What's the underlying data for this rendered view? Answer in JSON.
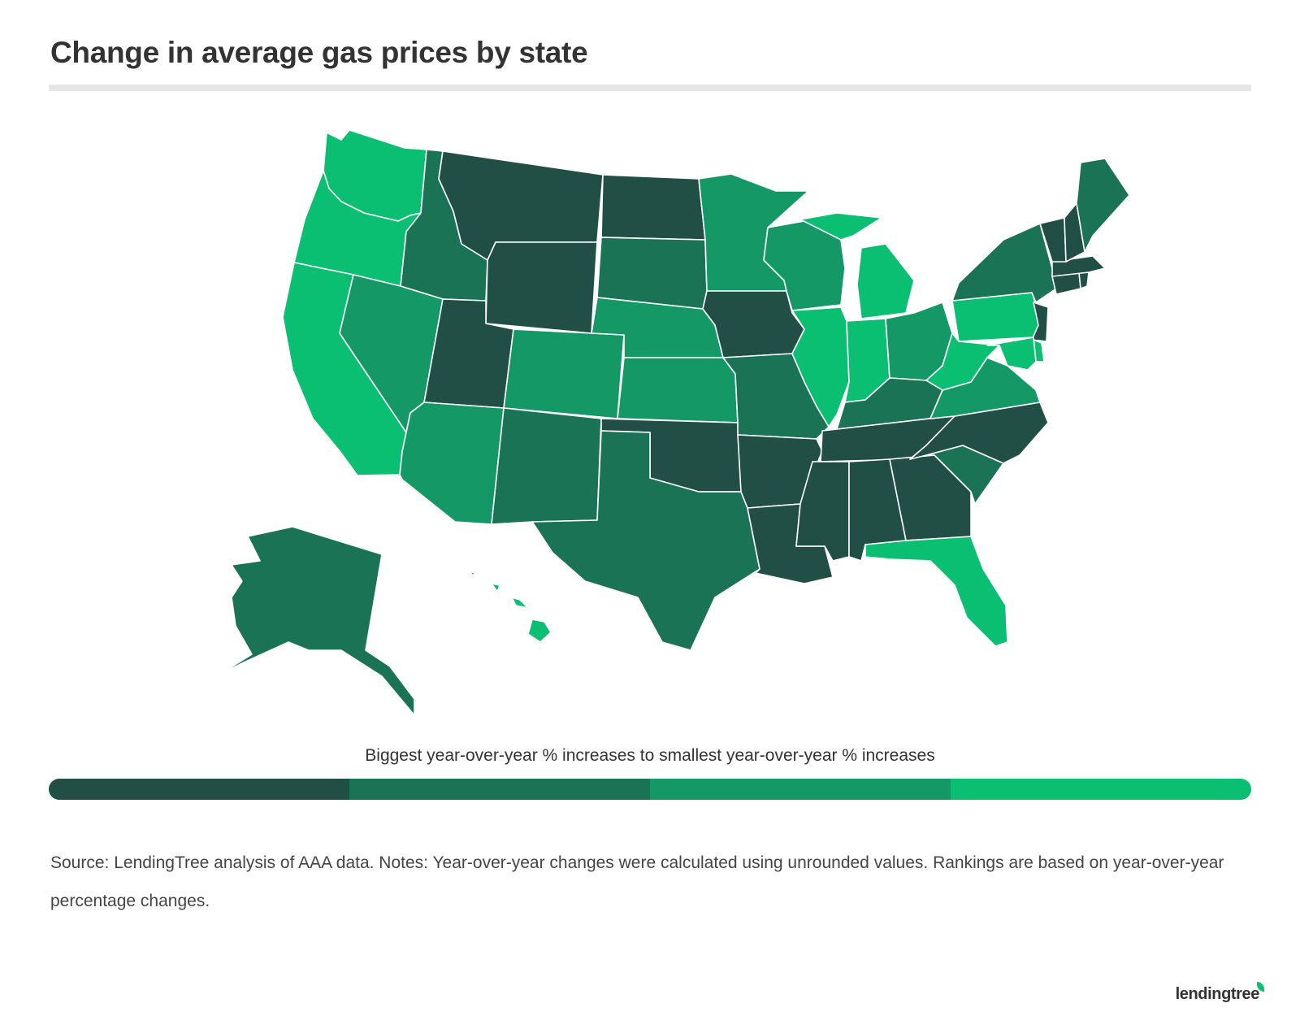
{
  "title": "Change in average gas prices by state",
  "legend": {
    "label": "Biggest year-over-year % increases to smallest year-over-year % increases",
    "colors": [
      "#214e45",
      "#1a7355",
      "#149866",
      "#0bbf72"
    ]
  },
  "source": "Source: LendingTree analysis of AAA data. Notes: Year-over-year changes were calculated using unrounded values. Rankings are based on year-over-year percentage changes.",
  "logo": "lendingtree",
  "map_data": {
    "type": "choropleth",
    "category_colors": [
      "#214e45",
      "#1a7355",
      "#149866",
      "#0bbf72"
    ],
    "states": {
      "WA": 3,
      "OR": 3,
      "CA": 3,
      "ID": 1,
      "NV": 2,
      "MT": 0,
      "WY": 0,
      "UT": 0,
      "AZ": 2,
      "CO": 2,
      "NM": 1,
      "ND": 0,
      "SD": 1,
      "NE": 2,
      "KS": 2,
      "OK": 0,
      "TX": 1,
      "MN": 2,
      "IA": 0,
      "MO": 1,
      "AR": 0,
      "LA": 0,
      "WI": 2,
      "IL": 3,
      "MI": 3,
      "IN": 3,
      "OH": 2,
      "KY": 1,
      "TN": 0,
      "MS": 0,
      "AL": 0,
      "GA": 0,
      "FL": 3,
      "SC": 1,
      "NC": 0,
      "VA": 2,
      "WV": 3,
      "PA": 3,
      "NY": 1,
      "VT": 0,
      "NH": 0,
      "ME": 1,
      "MA": 0,
      "RI": 0,
      "CT": 0,
      "NJ": 0,
      "DE": 3,
      "MD": 3,
      "AK": 1,
      "HI": 3
    }
  }
}
